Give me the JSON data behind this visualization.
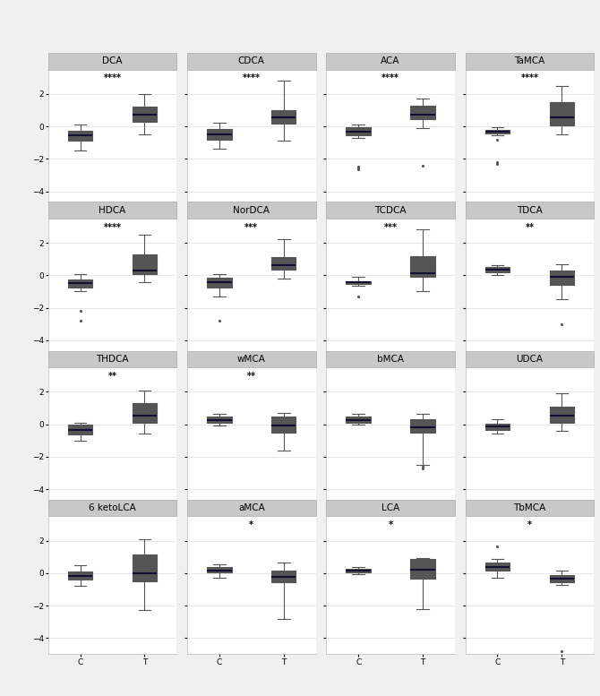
{
  "panels": [
    {
      "title": "DCA",
      "sig": "****",
      "C": {
        "q1": -0.9,
        "med": -0.55,
        "q3": -0.25,
        "whislo": -1.5,
        "whishi": 0.1,
        "fliers": []
      },
      "T": {
        "q1": 0.3,
        "med": 0.75,
        "q3": 1.2,
        "whislo": -0.5,
        "whishi": 2.0,
        "fliers": []
      }
    },
    {
      "title": "CDCA",
      "sig": "****",
      "C": {
        "q1": -0.85,
        "med": -0.5,
        "q3": -0.15,
        "whislo": -1.4,
        "whishi": 0.2,
        "fliers": []
      },
      "T": {
        "q1": 0.15,
        "med": 0.55,
        "q3": 1.0,
        "whislo": -0.9,
        "whishi": 2.8,
        "fliers": []
      }
    },
    {
      "title": "ACA",
      "sig": "****",
      "C": {
        "q1": -0.55,
        "med": -0.3,
        "q3": -0.05,
        "whislo": -0.7,
        "whishi": 0.1,
        "fliers": [
          -2.5,
          -2.6,
          -2.65
        ]
      },
      "T": {
        "q1": 0.45,
        "med": 0.75,
        "q3": 1.25,
        "whislo": -0.1,
        "whishi": 1.7,
        "fliers": [
          -2.45
        ]
      }
    },
    {
      "title": "TaMCA",
      "sig": "****",
      "C": {
        "q1": -0.45,
        "med": -0.35,
        "q3": -0.2,
        "whislo": -0.55,
        "whishi": -0.05,
        "fliers": [
          -0.85,
          -2.2,
          -2.3
        ]
      },
      "T": {
        "q1": 0.05,
        "med": 0.55,
        "q3": 1.5,
        "whislo": -0.5,
        "whishi": 2.5,
        "fliers": []
      }
    },
    {
      "title": "HDCA",
      "sig": "****",
      "C": {
        "q1": -0.75,
        "med": -0.5,
        "q3": -0.25,
        "whislo": -1.0,
        "whishi": 0.1,
        "fliers": [
          -2.2,
          -2.8
        ]
      },
      "T": {
        "q1": 0.1,
        "med": 0.3,
        "q3": 1.3,
        "whislo": -0.4,
        "whishi": 2.5,
        "fliers": []
      }
    },
    {
      "title": "NorDCA",
      "sig": "***",
      "C": {
        "q1": -0.75,
        "med": -0.45,
        "q3": -0.15,
        "whislo": -1.3,
        "whishi": 0.1,
        "fliers": [
          -2.8
        ]
      },
      "T": {
        "q1": 0.35,
        "med": 0.65,
        "q3": 1.1,
        "whislo": -0.2,
        "whishi": 2.2,
        "fliers": []
      }
    },
    {
      "title": "TCDCA",
      "sig": "***",
      "C": {
        "q1": -0.55,
        "med": -0.45,
        "q3": -0.35,
        "whislo": -0.65,
        "whishi": -0.1,
        "fliers": [
          -1.3
        ]
      },
      "T": {
        "q1": -0.1,
        "med": 0.15,
        "q3": 1.2,
        "whislo": -1.0,
        "whishi": 2.85,
        "fliers": []
      }
    },
    {
      "title": "TDCA",
      "sig": "**",
      "C": {
        "q1": 0.2,
        "med": 0.35,
        "q3": 0.5,
        "whislo": 0.0,
        "whishi": 0.65,
        "fliers": []
      },
      "T": {
        "q1": -0.6,
        "med": -0.1,
        "q3": 0.3,
        "whislo": -1.5,
        "whishi": 0.7,
        "fliers": [
          -3.0
        ]
      }
    },
    {
      "title": "THDCA",
      "sig": "**",
      "C": {
        "q1": -0.65,
        "med": -0.35,
        "q3": -0.05,
        "whislo": -1.0,
        "whishi": 0.1,
        "fliers": []
      },
      "T": {
        "q1": 0.1,
        "med": 0.55,
        "q3": 1.3,
        "whislo": -0.6,
        "whishi": 2.1,
        "fliers": []
      }
    },
    {
      "title": "wMCA",
      "sig": "**",
      "C": {
        "q1": 0.1,
        "med": 0.25,
        "q3": 0.45,
        "whislo": -0.1,
        "whishi": 0.65,
        "fliers": []
      },
      "T": {
        "q1": -0.5,
        "med": -0.1,
        "q3": 0.45,
        "whislo": -1.6,
        "whishi": 0.7,
        "fliers": []
      }
    },
    {
      "title": "bMCA",
      "sig": "",
      "C": {
        "q1": 0.1,
        "med": 0.25,
        "q3": 0.45,
        "whislo": -0.05,
        "whishi": 0.65,
        "fliers": []
      },
      "T": {
        "q1": -0.5,
        "med": -0.2,
        "q3": 0.3,
        "whislo": -2.5,
        "whishi": 0.65,
        "fliers": [
          -2.6,
          -2.75
        ]
      }
    },
    {
      "title": "UDCA",
      "sig": "",
      "C": {
        "q1": -0.35,
        "med": -0.15,
        "q3": 0.05,
        "whislo": -0.6,
        "whishi": 0.3,
        "fliers": []
      },
      "T": {
        "q1": 0.1,
        "med": 0.55,
        "q3": 1.1,
        "whislo": -0.4,
        "whishi": 1.9,
        "fliers": []
      }
    },
    {
      "title": "6 ketoLCA",
      "sig": "",
      "C": {
        "q1": -0.4,
        "med": -0.15,
        "q3": 0.1,
        "whislo": -0.8,
        "whishi": 0.5,
        "fliers": []
      },
      "T": {
        "q1": -0.5,
        "med": 0.0,
        "q3": 1.15,
        "whislo": -2.3,
        "whishi": 2.1,
        "fliers": []
      }
    },
    {
      "title": "aMCA",
      "sig": "*",
      "C": {
        "q1": 0.05,
        "med": 0.15,
        "q3": 0.35,
        "whislo": -0.3,
        "whishi": 0.55,
        "fliers": []
      },
      "T": {
        "q1": -0.55,
        "med": -0.25,
        "q3": 0.15,
        "whislo": -2.85,
        "whishi": 0.65,
        "fliers": []
      }
    },
    {
      "title": "LCA",
      "sig": "*",
      "C": {
        "q1": 0.05,
        "med": 0.15,
        "q3": 0.25,
        "whislo": -0.05,
        "whishi": 0.35,
        "fliers": []
      },
      "T": {
        "q1": -0.35,
        "med": 0.2,
        "q3": 0.85,
        "whislo": -2.2,
        "whishi": 0.95,
        "fliers": []
      }
    },
    {
      "title": "TbMCA",
      "sig": "*",
      "C": {
        "q1": 0.15,
        "med": 0.35,
        "q3": 0.65,
        "whislo": -0.3,
        "whishi": 0.9,
        "fliers": [
          1.65
        ]
      },
      "T": {
        "q1": -0.55,
        "med": -0.35,
        "q3": -0.1,
        "whislo": -0.75,
        "whishi": 0.15,
        "fliers": [
          -4.8
        ]
      }
    }
  ],
  "color_C": "#2ab5a5",
  "color_T": "#4169b8",
  "background_color": "#f0f0f0",
  "panel_bg": "#ffffff",
  "title_bg": "#c8c8c8",
  "ylim": [
    -5.0,
    3.5
  ],
  "yticks": [
    -4,
    -2,
    0,
    2
  ],
  "nrows": 4,
  "ncols": 4,
  "box_width": 0.38,
  "linecolor": "#555555",
  "mediancolor": "#111133",
  "fliersize": 2.5,
  "sig_fontsize": 7,
  "title_fontsize": 7.5,
  "tick_fontsize": 6.5
}
